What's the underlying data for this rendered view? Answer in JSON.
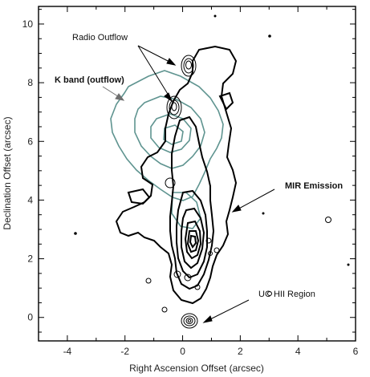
{
  "chart_data": {
    "type": "contour",
    "xlabel": "Right Ascension Offset (arcsec)",
    "ylabel": "Declination Offset (arcsec)",
    "xlim": [
      -5,
      6
    ],
    "ylim": [
      -0.8,
      10.6
    ],
    "x_ticks": [
      -4,
      -2,
      0,
      2,
      4,
      6
    ],
    "y_ticks": [
      0,
      2,
      4,
      6,
      8,
      10
    ],
    "annotations": [
      {
        "text": "Radio Outflow",
        "color": "#111111",
        "bold": false
      },
      {
        "text": "K band (outflow)",
        "color": "#6f6f6f",
        "bold": true
      },
      {
        "text": "MIR Emission",
        "color": "#111111",
        "bold": true
      },
      {
        "text": "UC HII Region",
        "color": "#111111",
        "bold": false
      }
    ],
    "series": [
      {
        "role": "MIR emission contours",
        "color": "#000000"
      },
      {
        "role": "K band outflow contours",
        "color": "#5f9490"
      },
      {
        "role": "radio contours",
        "color": "#000000"
      }
    ]
  }
}
